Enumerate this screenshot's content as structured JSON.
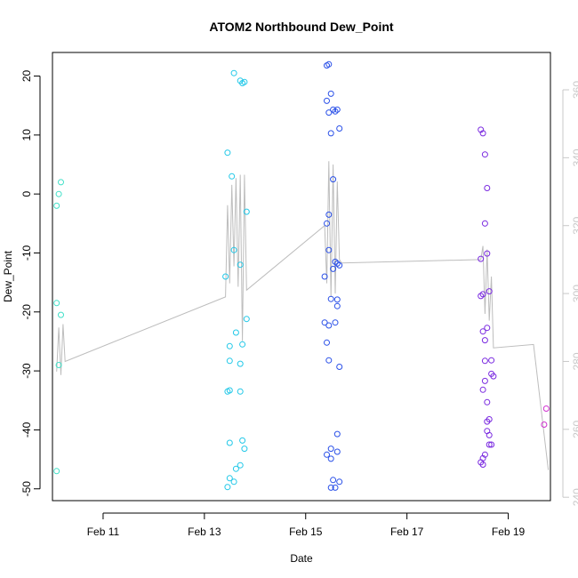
{
  "chart_data": {
    "type": "scatter",
    "title": "ATOM2 Northbound Dew_Point",
    "xlabel": "Date",
    "ylabel": "Dew_Point",
    "xlim": [
      "2021-02-10T00:00",
      "2021-02-19T20:00"
    ],
    "ylim": [
      -52,
      24
    ],
    "y2lim": [
      239,
      371
    ],
    "x_ticks": [
      {
        "date": "2021-02-11",
        "label": "Feb 11"
      },
      {
        "date": "2021-02-13",
        "label": "Feb 13"
      },
      {
        "date": "2021-02-15",
        "label": "Feb 15"
      },
      {
        "date": "2021-02-17",
        "label": "Feb 17"
      },
      {
        "date": "2021-02-19",
        "label": "Feb 19"
      }
    ],
    "y_ticks": [
      -50,
      -40,
      -30,
      -20,
      -10,
      0,
      10,
      20
    ],
    "y2_ticks": [
      240,
      260,
      280,
      300,
      320,
      340,
      360
    ],
    "grid": false,
    "legend": "none",
    "colors": {
      "line": "#bdbdbd",
      "right_axis": "#c8c8c8",
      "frame": "#000000"
    },
    "series": [
      {
        "color": "#40e0c8",
        "points": [
          {
            "x": "2021-02-10T02:00",
            "y": -2
          },
          {
            "x": "2021-02-10T03:00",
            "y": 0
          },
          {
            "x": "2021-02-10T04:00",
            "y": 2
          },
          {
            "x": "2021-02-10T02:00",
            "y": -18.5
          },
          {
            "x": "2021-02-10T04:00",
            "y": -20.5
          },
          {
            "x": "2021-02-10T03:00",
            "y": -29
          },
          {
            "x": "2021-02-10T02:00",
            "y": -47
          }
        ]
      },
      {
        "color": "#22c8e8",
        "points": [
          {
            "x": "2021-02-13T14:00",
            "y": 20.5
          },
          {
            "x": "2021-02-13T17:00",
            "y": 19.2
          },
          {
            "x": "2021-02-13T18:00",
            "y": 18.8
          },
          {
            "x": "2021-02-13T19:00",
            "y": 19
          },
          {
            "x": "2021-02-13T11:00",
            "y": 7
          },
          {
            "x": "2021-02-13T13:00",
            "y": 3
          },
          {
            "x": "2021-02-13T20:00",
            "y": -3
          },
          {
            "x": "2021-02-13T14:00",
            "y": -9.5
          },
          {
            "x": "2021-02-13T17:00",
            "y": -12
          },
          {
            "x": "2021-02-13T10:00",
            "y": -14
          },
          {
            "x": "2021-02-13T20:00",
            "y": -21.2
          },
          {
            "x": "2021-02-13T15:00",
            "y": -23.5
          },
          {
            "x": "2021-02-13T12:00",
            "y": -25.8
          },
          {
            "x": "2021-02-13T18:00",
            "y": -25.5
          },
          {
            "x": "2021-02-13T12:00",
            "y": -28.3
          },
          {
            "x": "2021-02-13T17:00",
            "y": -28.8
          },
          {
            "x": "2021-02-13T11:00",
            "y": -33.5
          },
          {
            "x": "2021-02-13T12:00",
            "y": -33.3
          },
          {
            "x": "2021-02-13T17:00",
            "y": -33.5
          },
          {
            "x": "2021-02-13T12:00",
            "y": -42.2
          },
          {
            "x": "2021-02-13T18:00",
            "y": -41.8
          },
          {
            "x": "2021-02-13T19:00",
            "y": -43.2
          },
          {
            "x": "2021-02-13T17:00",
            "y": -46
          },
          {
            "x": "2021-02-13T15:00",
            "y": -46.6
          },
          {
            "x": "2021-02-13T12:00",
            "y": -48.2
          },
          {
            "x": "2021-02-13T14:00",
            "y": -48.8
          },
          {
            "x": "2021-02-13T11:00",
            "y": -49.7
          }
        ]
      },
      {
        "color": "#2a50e8",
        "points": [
          {
            "x": "2021-02-15T10:00",
            "y": 21.8
          },
          {
            "x": "2021-02-15T11:00",
            "y": 22
          },
          {
            "x": "2021-02-15T10:00",
            "y": 15.8
          },
          {
            "x": "2021-02-15T12:00",
            "y": 17
          },
          {
            "x": "2021-02-15T11:00",
            "y": 13.8
          },
          {
            "x": "2021-02-15T13:00",
            "y": 14.3
          },
          {
            "x": "2021-02-15T14:00",
            "y": 14
          },
          {
            "x": "2021-02-15T15:00",
            "y": 14.3
          },
          {
            "x": "2021-02-15T16:00",
            "y": 11.1
          },
          {
            "x": "2021-02-15T12:00",
            "y": 10.3
          },
          {
            "x": "2021-02-15T13:00",
            "y": 2.5
          },
          {
            "x": "2021-02-15T11:00",
            "y": -3.5
          },
          {
            "x": "2021-02-15T10:00",
            "y": -5
          },
          {
            "x": "2021-02-15T11:00",
            "y": -9.5
          },
          {
            "x": "2021-02-15T14:00",
            "y": -11.5
          },
          {
            "x": "2021-02-15T15:00",
            "y": -11.8
          },
          {
            "x": "2021-02-15T16:00",
            "y": -12.1
          },
          {
            "x": "2021-02-15T13:00",
            "y": -12.7
          },
          {
            "x": "2021-02-15T09:00",
            "y": -14
          },
          {
            "x": "2021-02-15T12:00",
            "y": -17.8
          },
          {
            "x": "2021-02-15T15:00",
            "y": -17.9
          },
          {
            "x": "2021-02-15T15:00",
            "y": -19
          },
          {
            "x": "2021-02-15T09:00",
            "y": -21.8
          },
          {
            "x": "2021-02-15T11:00",
            "y": -22.3
          },
          {
            "x": "2021-02-15T14:00",
            "y": -21.8
          },
          {
            "x": "2021-02-15T10:00",
            "y": -25.2
          },
          {
            "x": "2021-02-15T11:00",
            "y": -28.2
          },
          {
            "x": "2021-02-15T16:00",
            "y": -29.3
          },
          {
            "x": "2021-02-15T15:00",
            "y": -40.7
          },
          {
            "x": "2021-02-15T12:00",
            "y": -43.2
          },
          {
            "x": "2021-02-15T10:00",
            "y": -44.2
          },
          {
            "x": "2021-02-15T12:00",
            "y": -44.9
          },
          {
            "x": "2021-02-15T15:00",
            "y": -43.7
          },
          {
            "x": "2021-02-15T13:00",
            "y": -48.5
          },
          {
            "x": "2021-02-15T16:00",
            "y": -48.8
          },
          {
            "x": "2021-02-15T12:00",
            "y": -49.8
          },
          {
            "x": "2021-02-15T14:00",
            "y": -49.8
          }
        ]
      },
      {
        "color": "#7a2ae0",
        "points": [
          {
            "x": "2021-02-18T11:00",
            "y": 10.9
          },
          {
            "x": "2021-02-18T12:00",
            "y": 10.3
          },
          {
            "x": "2021-02-18T13:00",
            "y": 6.7
          },
          {
            "x": "2021-02-18T14:00",
            "y": 1
          },
          {
            "x": "2021-02-18T13:00",
            "y": -5
          },
          {
            "x": "2021-02-18T14:00",
            "y": -10.1
          },
          {
            "x": "2021-02-18T11:00",
            "y": -11
          },
          {
            "x": "2021-02-18T15:00",
            "y": -16.5
          },
          {
            "x": "2021-02-18T11:00",
            "y": -17.3
          },
          {
            "x": "2021-02-18T12:00",
            "y": -17
          },
          {
            "x": "2021-02-18T14:00",
            "y": -22.7
          },
          {
            "x": "2021-02-18T12:00",
            "y": -23.3
          },
          {
            "x": "2021-02-18T13:00",
            "y": -24.8
          },
          {
            "x": "2021-02-18T13:00",
            "y": -28.3
          },
          {
            "x": "2021-02-18T16:00",
            "y": -28.2
          },
          {
            "x": "2021-02-18T16:00",
            "y": -30.5
          },
          {
            "x": "2021-02-18T17:00",
            "y": -30.9
          },
          {
            "x": "2021-02-18T13:00",
            "y": -31.7
          },
          {
            "x": "2021-02-18T12:00",
            "y": -33.2
          },
          {
            "x": "2021-02-18T14:00",
            "y": -35.3
          },
          {
            "x": "2021-02-18T15:00",
            "y": -38.2
          },
          {
            "x": "2021-02-18T14:00",
            "y": -38.6
          },
          {
            "x": "2021-02-18T14:00",
            "y": -40.2
          },
          {
            "x": "2021-02-18T15:00",
            "y": -40.9
          },
          {
            "x": "2021-02-18T15:00",
            "y": -42.5
          },
          {
            "x": "2021-02-18T16:00",
            "y": -42.5
          },
          {
            "x": "2021-02-18T13:00",
            "y": -44.2
          },
          {
            "x": "2021-02-18T12:00",
            "y": -44.8
          },
          {
            "x": "2021-02-18T11:00",
            "y": -45.5
          },
          {
            "x": "2021-02-18T12:00",
            "y": -45.9
          }
        ]
      },
      {
        "color": "#d030d0",
        "points": [
          {
            "x": "2021-02-19T18:00",
            "y": -36.4
          },
          {
            "x": "2021-02-19T17:00",
            "y": -39.1
          }
        ]
      }
    ],
    "line": {
      "axis": "right",
      "points": [
        {
          "x": "2021-02-10T02:00",
          "y": 277
        },
        {
          "x": "2021-02-10T03:00",
          "y": 290
        },
        {
          "x": "2021-02-10T04:00",
          "y": 276
        },
        {
          "x": "2021-02-10T05:00",
          "y": 291
        },
        {
          "x": "2021-02-10T06:00",
          "y": 280
        },
        {
          "x": "2021-02-13T10:00",
          "y": 299
        },
        {
          "x": "2021-02-13T11:00",
          "y": 326
        },
        {
          "x": "2021-02-13T12:00",
          "y": 303
        },
        {
          "x": "2021-02-13T13:00",
          "y": 332
        },
        {
          "x": "2021-02-13T14:00",
          "y": 308
        },
        {
          "x": "2021-02-13T15:00",
          "y": 334
        },
        {
          "x": "2021-02-13T16:00",
          "y": 302
        },
        {
          "x": "2021-02-13T17:00",
          "y": 335
        },
        {
          "x": "2021-02-13T18:00",
          "y": 286
        },
        {
          "x": "2021-02-13T19:00",
          "y": 335
        },
        {
          "x": "2021-02-13T20:00",
          "y": 301
        },
        {
          "x": "2021-02-15T09:00",
          "y": 320
        },
        {
          "x": "2021-02-15T10:00",
          "y": 303
        },
        {
          "x": "2021-02-15T11:00",
          "y": 339
        },
        {
          "x": "2021-02-15T12:00",
          "y": 299
        },
        {
          "x": "2021-02-15T13:00",
          "y": 338
        },
        {
          "x": "2021-02-15T14:00",
          "y": 300
        },
        {
          "x": "2021-02-15T15:00",
          "y": 333
        },
        {
          "x": "2021-02-15T16:00",
          "y": 310
        },
        {
          "x": "2021-02-15T17:00",
          "y": 309
        },
        {
          "x": "2021-02-18T11:00",
          "y": 310
        },
        {
          "x": "2021-02-18T12:00",
          "y": 314
        },
        {
          "x": "2021-02-18T13:00",
          "y": 294
        },
        {
          "x": "2021-02-18T14:00",
          "y": 313
        },
        {
          "x": "2021-02-18T15:00",
          "y": 292
        },
        {
          "x": "2021-02-18T16:00",
          "y": 305
        },
        {
          "x": "2021-02-18T17:00",
          "y": 284
        },
        {
          "x": "2021-02-19T12:00",
          "y": 285
        },
        {
          "x": "2021-02-19T19:00",
          "y": 248
        }
      ]
    }
  }
}
